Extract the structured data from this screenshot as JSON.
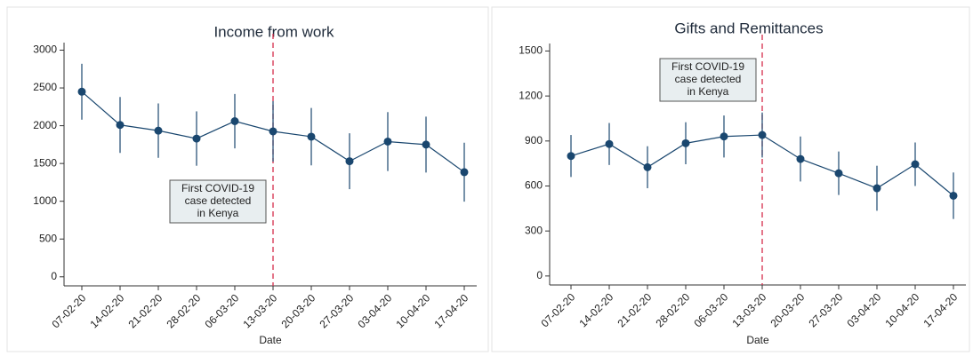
{
  "chart_data": [
    {
      "type": "line",
      "title": "Income from work",
      "x_label": "Date",
      "categories": [
        "07-02-20",
        "14-02-20",
        "21-02-20",
        "28-02-20",
        "06-03-20",
        "13-03-20",
        "20-03-20",
        "27-03-20",
        "03-04-20",
        "10-04-20",
        "17-04-20"
      ],
      "values": [
        2450,
        2010,
        1935,
        1830,
        2060,
        1925,
        1855,
        1530,
        1790,
        1750,
        1385
      ],
      "errors": [
        370,
        370,
        360,
        360,
        360,
        400,
        380,
        370,
        390,
        370,
        390
      ],
      "color": "#1a476f",
      "ylim": [
        -120,
        3100
      ],
      "yticks": [
        0,
        500,
        1000,
        1500,
        2000,
        2500,
        3000
      ],
      "vline": "13-03-20",
      "vline_color": "#d62d4b",
      "annotation": [
        "First COVID-19",
        "case detected",
        "in Kenya"
      ]
    },
    {
      "type": "line",
      "title": "Gifts and Remittances",
      "x_label": "Date",
      "categories": [
        "07-02-20",
        "14-02-20",
        "21-02-20",
        "28-02-20",
        "06-03-20",
        "13-03-20",
        "20-03-20",
        "27-03-20",
        "03-04-20",
        "10-04-20",
        "17-04-20"
      ],
      "values": [
        800,
        880,
        725,
        885,
        930,
        940,
        780,
        685,
        585,
        745,
        535
      ],
      "errors": [
        140,
        140,
        140,
        140,
        140,
        150,
        150,
        145,
        150,
        145,
        155
      ],
      "color": "#1a476f",
      "ylim": [
        -60,
        1550
      ],
      "yticks": [
        0,
        300,
        600,
        900,
        1200,
        1500
      ],
      "vline": "13-03-20",
      "vline_color": "#d62d4b",
      "annotation": [
        "First COVID-19",
        "case detected",
        "in Kenya"
      ]
    }
  ]
}
